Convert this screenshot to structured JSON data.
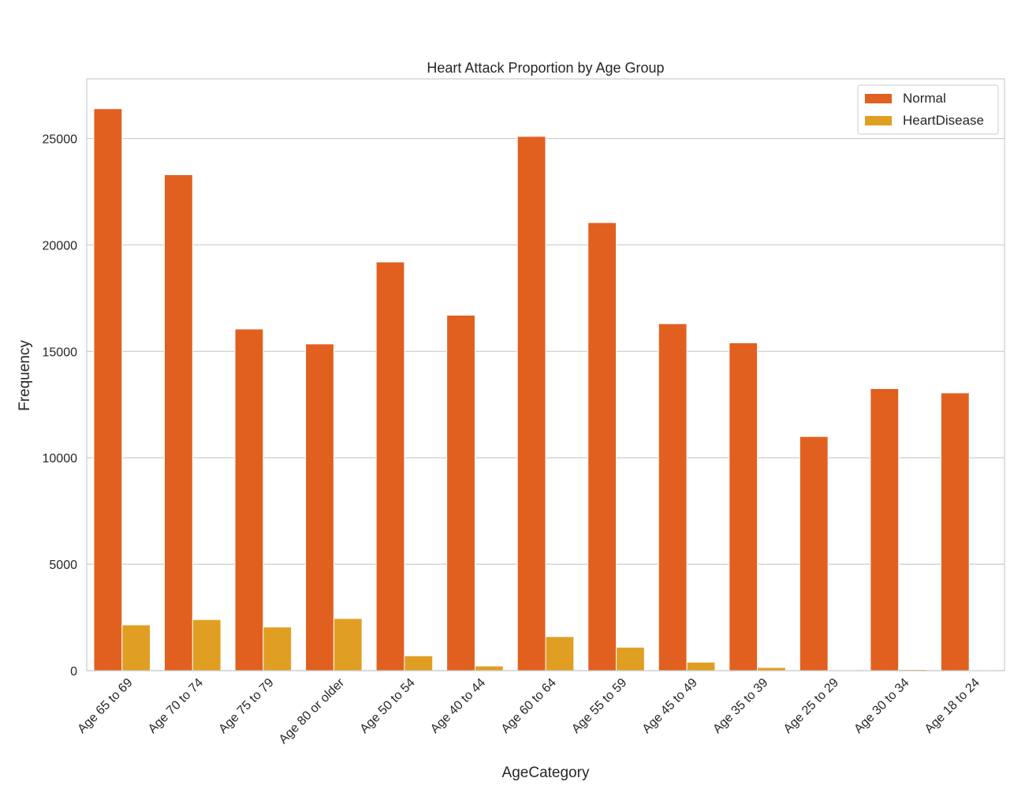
{
  "chart_data": {
    "type": "bar",
    "title": "Heart Attack Proportion by Age Group",
    "xlabel": "AgeCategory",
    "ylabel": "Frequency",
    "ylim": [
      0,
      27800
    ],
    "yticks": [
      0,
      5000,
      10000,
      15000,
      20000,
      25000
    ],
    "grid": true,
    "legend_position": "top-right",
    "categories": [
      "Age 65 to 69",
      "Age 70 to 74",
      "Age 75 to 79",
      "Age 80 or older",
      "Age 50 to 54",
      "Age 40 to 44",
      "Age 60 to 64",
      "Age 55 to 59",
      "Age 45 to 49",
      "Age 35 to 39",
      "Age 25 to 29",
      "Age 30 to 34",
      "Age 18 to 24"
    ],
    "series": [
      {
        "name": "Normal",
        "color": "#e1601f",
        "values": [
          26400,
          23300,
          16050,
          15350,
          19200,
          16700,
          25100,
          21050,
          16300,
          15400,
          11000,
          13250,
          13050
        ]
      },
      {
        "name": "HeartDisease",
        "color": "#e09f22",
        "values": [
          2150,
          2400,
          2050,
          2450,
          700,
          220,
          1600,
          1100,
          400,
          150,
          30,
          55,
          25
        ]
      }
    ]
  }
}
